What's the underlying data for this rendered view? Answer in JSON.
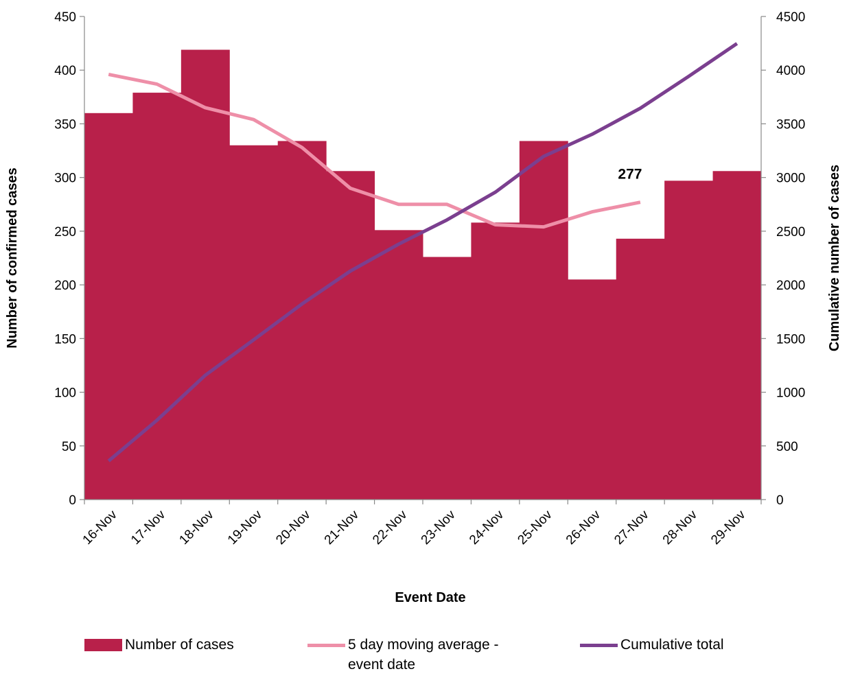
{
  "chart_data": {
    "type": "bar",
    "xlabel": "Event Date",
    "ylabel": "Number of confirmed cases",
    "y2label": "Cumulative number of cases",
    "categories": [
      "16-Nov",
      "17-Nov",
      "18-Nov",
      "19-Nov",
      "20-Nov",
      "21-Nov",
      "22-Nov",
      "23-Nov",
      "24-Nov",
      "25-Nov",
      "26-Nov",
      "27-Nov",
      "28-Nov",
      "29-Nov"
    ],
    "series": [
      {
        "name": "Number of cases",
        "type": "bar",
        "color": "#b8204a",
        "values": [
          360,
          379,
          419,
          330,
          334,
          306,
          251,
          226,
          258,
          334,
          205,
          243,
          297,
          306
        ]
      },
      {
        "name": "5 day moving average - event date",
        "type": "line",
        "color": "#ee8fa8",
        "values": [
          396,
          387,
          365,
          354,
          328,
          290,
          275,
          275,
          256,
          254,
          268,
          277,
          null,
          null
        ]
      },
      {
        "name": "Cumulative total",
        "type": "line",
        "color": "#7b3f8f",
        "axis": "y2",
        "values": [
          360,
          739,
          1158,
          1488,
          1822,
          2128,
          2379,
          2605,
          2863,
          3197,
          3402,
          3645,
          3942,
          4248
        ]
      }
    ],
    "annotations": [
      {
        "series": 1,
        "index": 11,
        "text": "277"
      }
    ],
    "ylim": [
      0,
      450
    ],
    "yticks": [
      0,
      50,
      100,
      150,
      200,
      250,
      300,
      350,
      400,
      450
    ],
    "y2lim": [
      0,
      4500
    ],
    "y2ticks": [
      0,
      500,
      1000,
      1500,
      2000,
      2500,
      3000,
      3500,
      4000,
      4500
    ],
    "legend": "bottom"
  }
}
